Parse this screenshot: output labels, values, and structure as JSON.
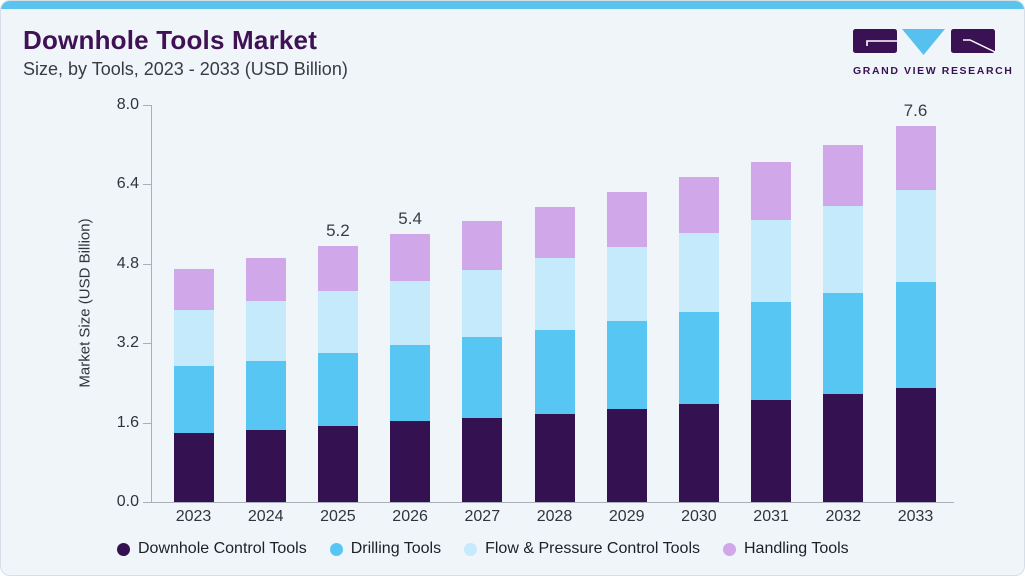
{
  "header": {
    "title": "Downhole Tools Market",
    "subtitle": "Size, by Tools, 2023 - 2033 (USD Billion)"
  },
  "logo": {
    "brand": "GRAND VIEW RESEARCH",
    "purple": "#3a1253",
    "blue": "#56c0ee"
  },
  "theme": {
    "card_background": "#f0f5fa",
    "accent_bar": "#5ac4ef",
    "title_color": "#3f1254",
    "axis_color": "#a8b0ba"
  },
  "chart_data": {
    "type": "bar",
    "stacked": true,
    "title": "Downhole Tools Market Size, by Tools, 2023 - 2033 (USD Billion)",
    "ylabel": "Market Size (USD Billion)",
    "xlabel": "",
    "ylim": [
      0.0,
      8.0
    ],
    "yticks": [
      0.0,
      1.6,
      3.2,
      4.8,
      6.4,
      8.0
    ],
    "grid": false,
    "legend_position": "bottom",
    "categories": [
      "2023",
      "2024",
      "2025",
      "2026",
      "2027",
      "2028",
      "2029",
      "2030",
      "2031",
      "2032",
      "2033"
    ],
    "series": [
      {
        "name": "Downhole Control Tools",
        "color": "#341251",
        "values": [
          1.38,
          1.46,
          1.54,
          1.64,
          1.7,
          1.78,
          1.88,
          1.98,
          2.06,
          2.18,
          2.3
        ]
      },
      {
        "name": "Drilling Tools",
        "color": "#58c6f3",
        "values": [
          1.36,
          1.38,
          1.46,
          1.52,
          1.62,
          1.68,
          1.76,
          1.84,
          1.96,
          2.04,
          2.14
        ]
      },
      {
        "name": "Flow & Pressure Control Tools",
        "color": "#c5eafb",
        "values": [
          1.12,
          1.22,
          1.26,
          1.3,
          1.36,
          1.46,
          1.5,
          1.6,
          1.66,
          1.74,
          1.84
        ]
      },
      {
        "name": "Handling Tools",
        "color": "#d0a7e9",
        "values": [
          0.84,
          0.86,
          0.9,
          0.94,
          0.98,
          1.02,
          1.1,
          1.12,
          1.18,
          1.24,
          1.3
        ]
      }
    ],
    "bar_labels": [
      {
        "category": "2025",
        "text": "5.2"
      },
      {
        "category": "2026",
        "text": "5.4"
      },
      {
        "category": "2033",
        "text": "7.6"
      }
    ]
  }
}
